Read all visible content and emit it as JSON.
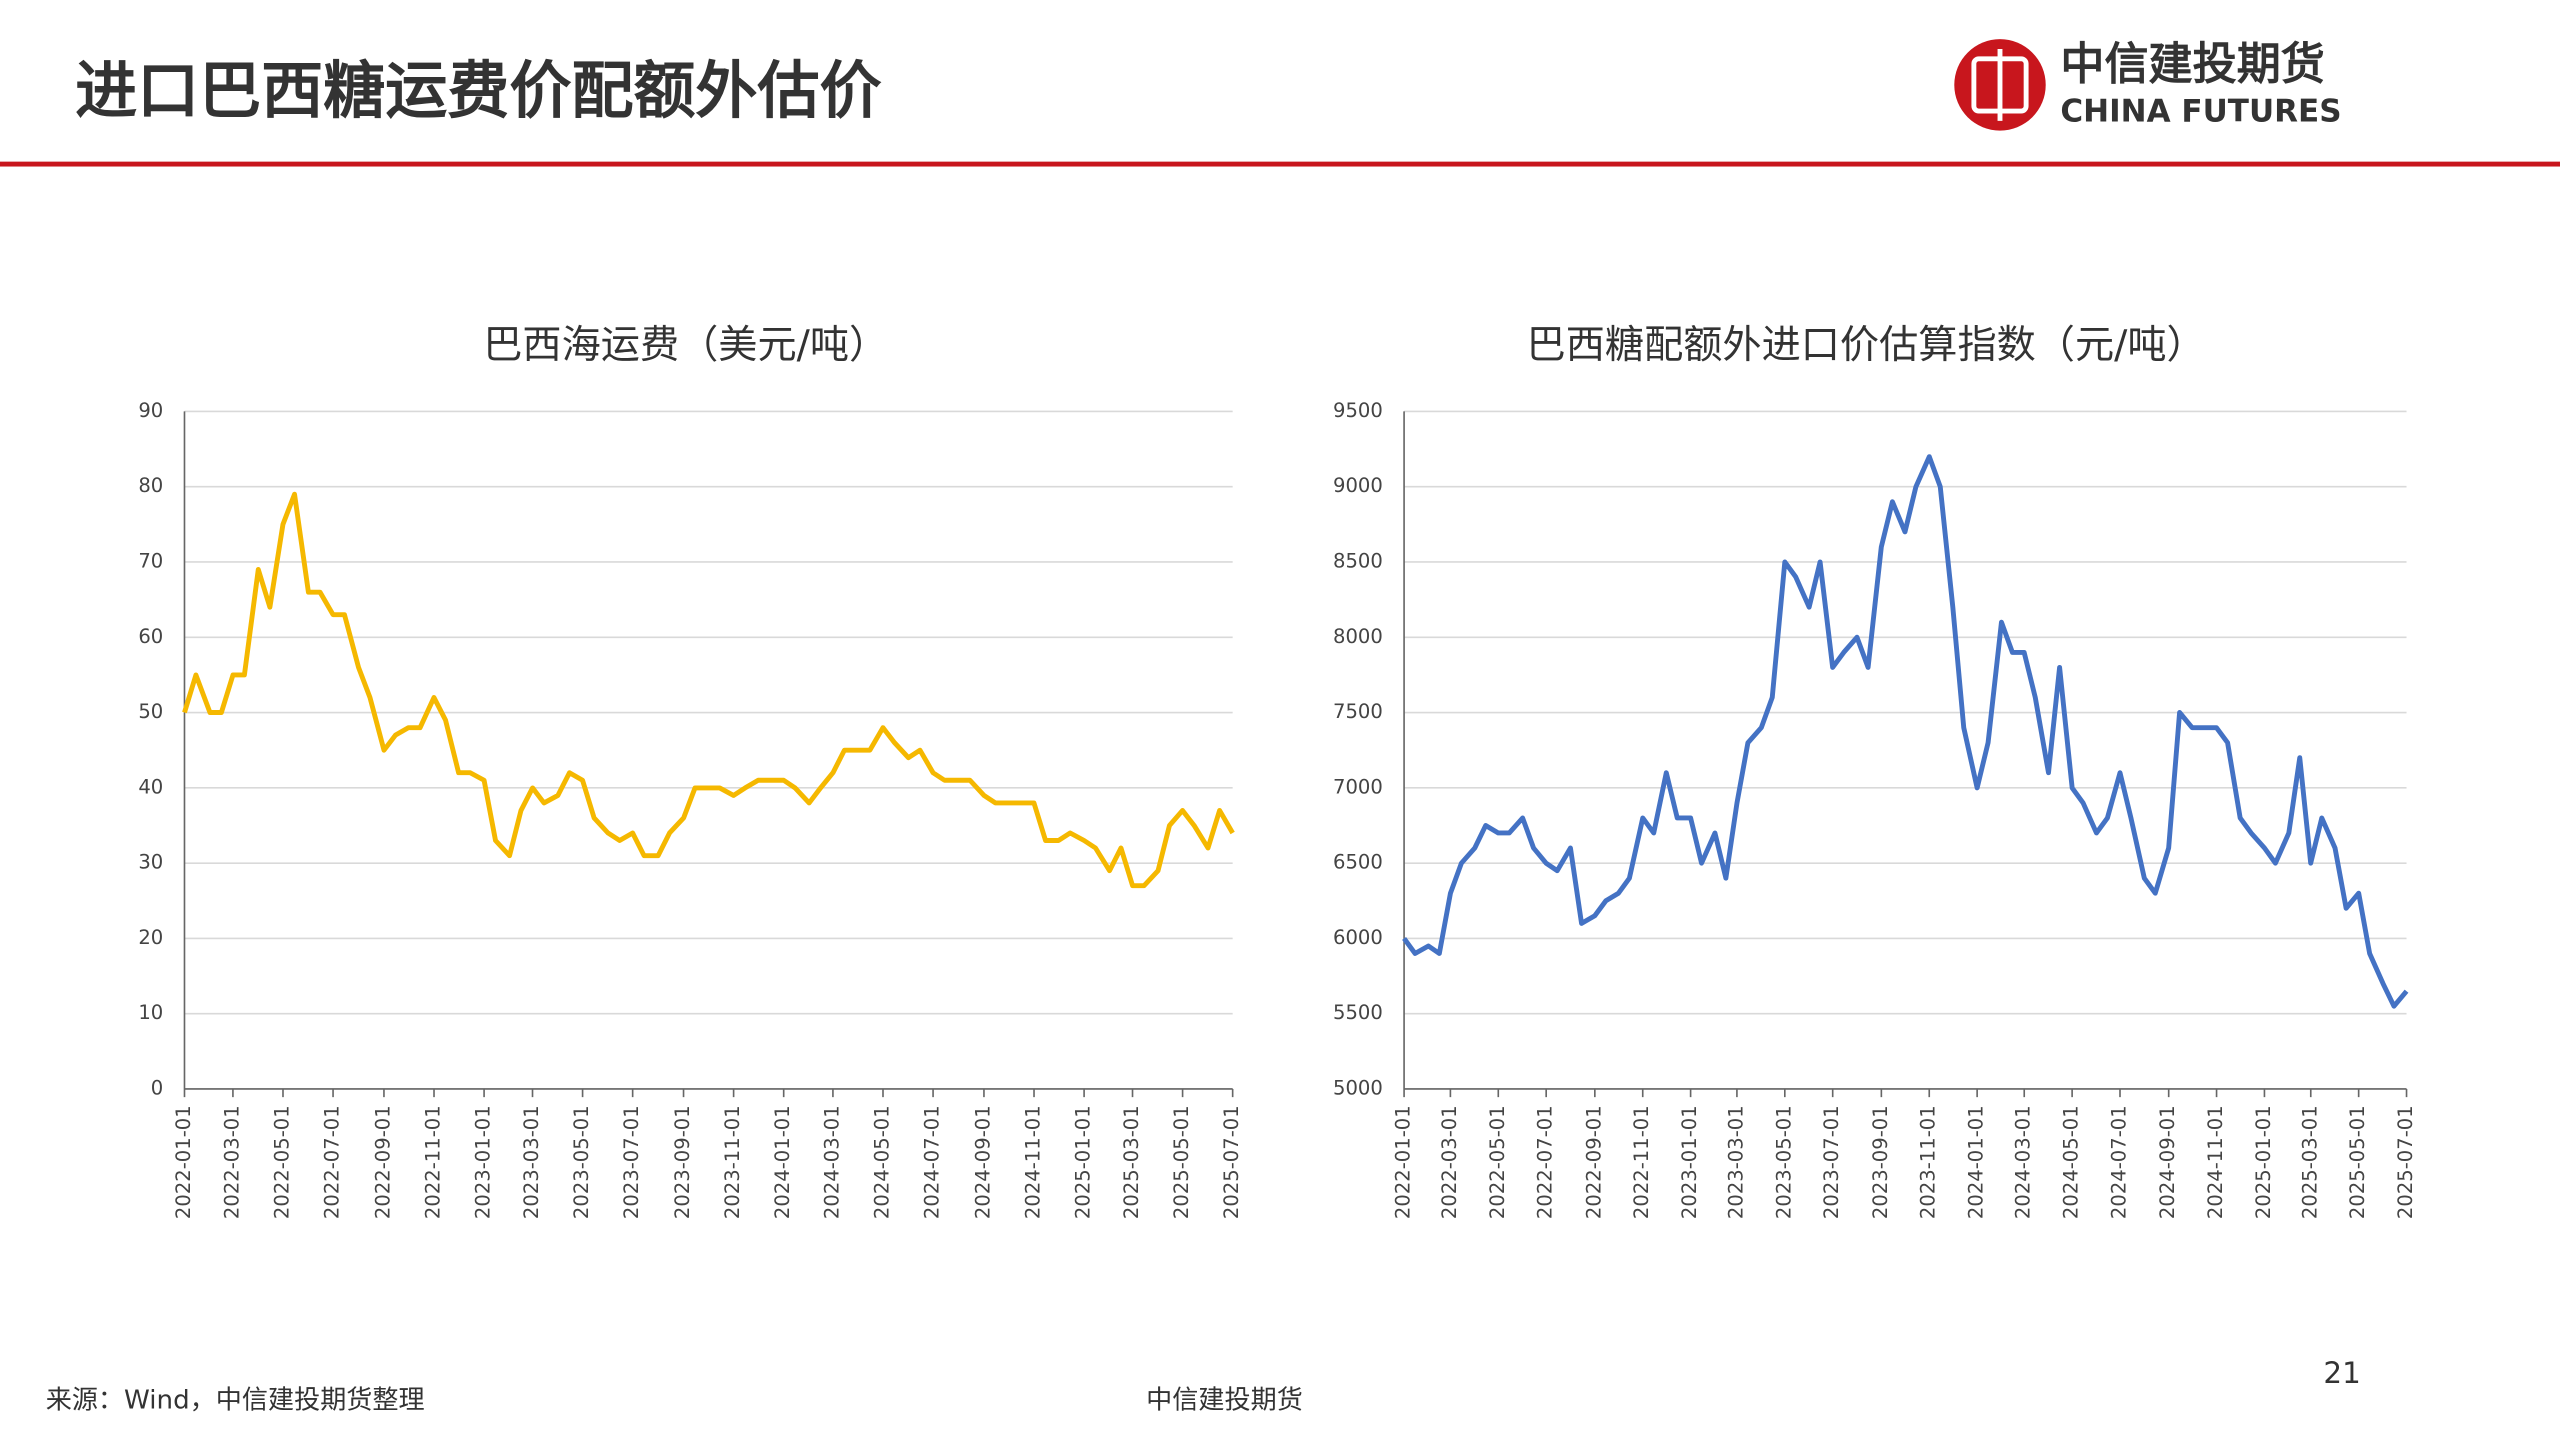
{
  "header": {
    "title": "进口巴西糖运费价配额外估价",
    "logo_cn": "中信建投期货",
    "logo_en": "CHINA FUTURES"
  },
  "footer": {
    "source": "来源：Wind，中信建投期货整理",
    "center": "中信建投期货",
    "page": "21"
  },
  "chart_data": [
    {
      "type": "line",
      "title": "巴西海运费（美元/吨）",
      "color": "#f5b800",
      "x": [
        "2022-01-01",
        "2022-01-15",
        "2022-02-01",
        "2022-02-15",
        "2022-03-01",
        "2022-03-15",
        "2022-04-01",
        "2022-04-15",
        "2022-05-01",
        "2022-05-15",
        "2022-06-01",
        "2022-06-15",
        "2022-07-01",
        "2022-07-15",
        "2022-08-01",
        "2022-08-15",
        "2022-09-01",
        "2022-09-15",
        "2022-10-01",
        "2022-10-15",
        "2022-11-01",
        "2022-11-15",
        "2022-12-01",
        "2022-12-15",
        "2023-01-01",
        "2023-01-15",
        "2023-02-01",
        "2023-02-15",
        "2023-03-01",
        "2023-03-15",
        "2023-04-01",
        "2023-04-15",
        "2023-05-01",
        "2023-05-15",
        "2023-06-01",
        "2023-06-15",
        "2023-07-01",
        "2023-07-15",
        "2023-08-01",
        "2023-08-15",
        "2023-09-01",
        "2023-09-15",
        "2023-10-01",
        "2023-10-15",
        "2023-11-01",
        "2023-11-15",
        "2023-12-01",
        "2023-12-15",
        "2024-01-01",
        "2024-01-15",
        "2024-02-01",
        "2024-02-15",
        "2024-03-01",
        "2024-03-15",
        "2024-04-01",
        "2024-04-15",
        "2024-05-01",
        "2024-05-15",
        "2024-06-01",
        "2024-06-15",
        "2024-07-01",
        "2024-07-15",
        "2024-08-01",
        "2024-08-15",
        "2024-09-01",
        "2024-09-15",
        "2024-10-01",
        "2024-10-15",
        "2024-11-01",
        "2024-11-15",
        "2024-12-01",
        "2024-12-15",
        "2025-01-01",
        "2025-01-15",
        "2025-02-01",
        "2025-02-15",
        "2025-03-01",
        "2025-03-15",
        "2025-04-01",
        "2025-04-15",
        "2025-05-01",
        "2025-05-15",
        "2025-06-01",
        "2025-06-15",
        "2025-07-01"
      ],
      "values": [
        50,
        55,
        50,
        50,
        55,
        55,
        69,
        64,
        75,
        79,
        66,
        66,
        63,
        63,
        56,
        52,
        45,
        47,
        48,
        48,
        52,
        49,
        42,
        42,
        41,
        33,
        31,
        37,
        40,
        38,
        39,
        42,
        41,
        36,
        34,
        33,
        34,
        31,
        31,
        34,
        36,
        40,
        40,
        40,
        39,
        40,
        41,
        41,
        41,
        40,
        38,
        40,
        42,
        45,
        45,
        45,
        48,
        46,
        44,
        45,
        42,
        41,
        41,
        41,
        39,
        38,
        38,
        38,
        38,
        33,
        33,
        34,
        33,
        32,
        29,
        32,
        27,
        27,
        29,
        35,
        37,
        35,
        32,
        37,
        34
      ],
      "xlim": [
        "2022-01-01",
        "2025-07-01"
      ],
      "xticks": [
        "2022-01-01",
        "2022-03-01",
        "2022-05-01",
        "2022-07-01",
        "2022-09-01",
        "2022-11-01",
        "2023-01-01",
        "2023-03-01",
        "2023-05-01",
        "2023-07-01",
        "2023-09-01",
        "2023-11-01",
        "2024-01-01",
        "2024-03-01",
        "2024-05-01",
        "2024-07-01",
        "2024-09-01",
        "2024-11-01",
        "2025-01-01",
        "2025-03-01",
        "2025-05-01",
        "2025-07-01"
      ],
      "ylim": [
        0,
        90
      ],
      "yticks": [
        0,
        10,
        20,
        30,
        40,
        50,
        60,
        70,
        80,
        90
      ],
      "grid": true
    },
    {
      "type": "line",
      "title": "巴西糖配额外进口价估算指数（元/吨）",
      "color": "#4472c4",
      "x": [
        "2022-01-01",
        "2022-01-15",
        "2022-02-01",
        "2022-02-15",
        "2022-03-01",
        "2022-03-15",
        "2022-04-01",
        "2022-04-15",
        "2022-05-01",
        "2022-05-15",
        "2022-06-01",
        "2022-06-15",
        "2022-07-01",
        "2022-07-15",
        "2022-08-01",
        "2022-08-15",
        "2022-09-01",
        "2022-09-15",
        "2022-10-01",
        "2022-10-15",
        "2022-11-01",
        "2022-11-15",
        "2022-12-01",
        "2022-12-15",
        "2023-01-01",
        "2023-01-15",
        "2023-02-01",
        "2023-02-15",
        "2023-03-01",
        "2023-03-15",
        "2023-04-01",
        "2023-04-15",
        "2023-05-01",
        "2023-05-15",
        "2023-06-01",
        "2023-06-15",
        "2023-07-01",
        "2023-07-15",
        "2023-08-01",
        "2023-08-15",
        "2023-09-01",
        "2023-09-15",
        "2023-10-01",
        "2023-10-15",
        "2023-11-01",
        "2023-11-15",
        "2023-12-01",
        "2023-12-15",
        "2024-01-01",
        "2024-01-15",
        "2024-02-01",
        "2024-02-15",
        "2024-03-01",
        "2024-03-15",
        "2024-04-01",
        "2024-04-15",
        "2024-05-01",
        "2024-05-15",
        "2024-06-01",
        "2024-06-15",
        "2024-07-01",
        "2024-07-15",
        "2024-08-01",
        "2024-08-15",
        "2024-09-01",
        "2024-09-15",
        "2024-10-01",
        "2024-10-15",
        "2024-11-01",
        "2024-11-15",
        "2024-12-01",
        "2024-12-15",
        "2025-01-01",
        "2025-01-15",
        "2025-02-01",
        "2025-02-15",
        "2025-03-01",
        "2025-03-15",
        "2025-04-01",
        "2025-04-15",
        "2025-05-01",
        "2025-05-15",
        "2025-06-01",
        "2025-06-15",
        "2025-07-01"
      ],
      "values": [
        6000,
        5900,
        5950,
        5900,
        6300,
        6500,
        6600,
        6750,
        6700,
        6700,
        6800,
        6600,
        6500,
        6450,
        6600,
        6100,
        6150,
        6250,
        6300,
        6400,
        6800,
        6700,
        7100,
        6800,
        6800,
        6500,
        6700,
        6400,
        6900,
        7300,
        7400,
        7600,
        8500,
        8400,
        8200,
        8500,
        7800,
        7900,
        8000,
        7800,
        8600,
        8900,
        8700,
        9000,
        9200,
        9000,
        8200,
        7400,
        7000,
        7300,
        8100,
        7900,
        7900,
        7600,
        7100,
        7800,
        7000,
        6900,
        6700,
        6800,
        7100,
        6800,
        6400,
        6300,
        6600,
        7500,
        7400,
        7400,
        7400,
        7300,
        6800,
        6700,
        6600,
        6500,
        6700,
        7200,
        6500,
        6800,
        6600,
        6200,
        6300,
        5900,
        5700,
        5550,
        5650
      ],
      "xlim": [
        "2022-01-01",
        "2025-07-01"
      ],
      "xticks": [
        "2022-01-01",
        "2022-03-01",
        "2022-05-01",
        "2022-07-01",
        "2022-09-01",
        "2022-11-01",
        "2023-01-01",
        "2023-03-01",
        "2023-05-01",
        "2023-07-01",
        "2023-09-01",
        "2023-11-01",
        "2024-01-01",
        "2024-03-01",
        "2024-05-01",
        "2024-07-01",
        "2024-09-01",
        "2024-11-01",
        "2025-01-01",
        "2025-03-01",
        "2025-05-01",
        "2025-07-01"
      ],
      "ylim": [
        5000,
        9500
      ],
      "yticks": [
        5000,
        5500,
        6000,
        6500,
        7000,
        7500,
        8000,
        8500,
        9000,
        9500
      ],
      "grid": true
    }
  ]
}
